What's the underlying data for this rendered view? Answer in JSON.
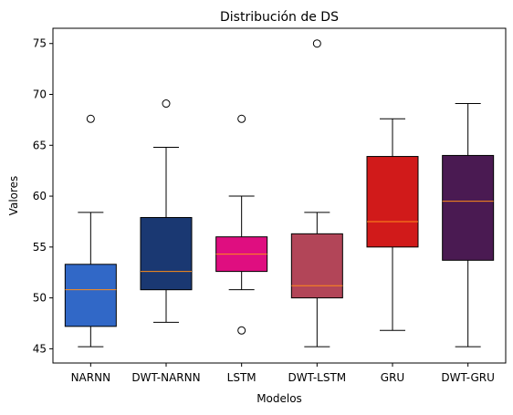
{
  "chart_data": {
    "type": "box",
    "title": "Distribución de DS",
    "xlabel": "Modelos",
    "ylabel": "Valores",
    "ylim": [
      43.6,
      76.5
    ],
    "yticks": [
      45,
      50,
      55,
      60,
      65,
      70,
      75
    ],
    "grid": false,
    "categories": [
      "NARNN",
      "DWT-NARNN",
      "LSTM",
      "DWT-LSTM",
      "GRU",
      "DWT-GRU"
    ],
    "boxes": [
      {
        "name": "NARNN",
        "whisker_low": 45.2,
        "q1": 47.2,
        "median": 50.8,
        "q3": 53.3,
        "whisker_high": 58.4,
        "outliers": [
          67.6
        ],
        "color": "#3168c7"
      },
      {
        "name": "DWT-NARNN",
        "whisker_low": 47.6,
        "q1": 50.8,
        "median": 52.6,
        "q3": 57.9,
        "whisker_high": 64.8,
        "outliers": [
          69.1
        ],
        "color": "#1a3872"
      },
      {
        "name": "LSTM",
        "whisker_low": 50.8,
        "q1": 52.6,
        "median": 54.3,
        "q3": 56.0,
        "whisker_high": 60.0,
        "outliers": [
          67.6,
          46.8
        ],
        "color": "#df0e80"
      },
      {
        "name": "DWT-LSTM",
        "whisker_low": 45.2,
        "q1": 50.0,
        "median": 51.2,
        "q3": 56.3,
        "whisker_high": 58.4,
        "outliers": [
          75.0
        ],
        "color": "#b24558"
      },
      {
        "name": "GRU",
        "whisker_low": 46.8,
        "q1": 55.0,
        "median": 57.5,
        "q3": 63.9,
        "whisker_high": 67.6,
        "outliers": [],
        "color": "#d11a1a"
      },
      {
        "name": "DWT-GRU",
        "whisker_low": 45.2,
        "q1": 53.7,
        "median": 59.5,
        "q3": 64.0,
        "whisker_high": 69.1,
        "outliers": [],
        "color": "#4a1a52"
      }
    ],
    "median_color": "#ff8c1a"
  }
}
